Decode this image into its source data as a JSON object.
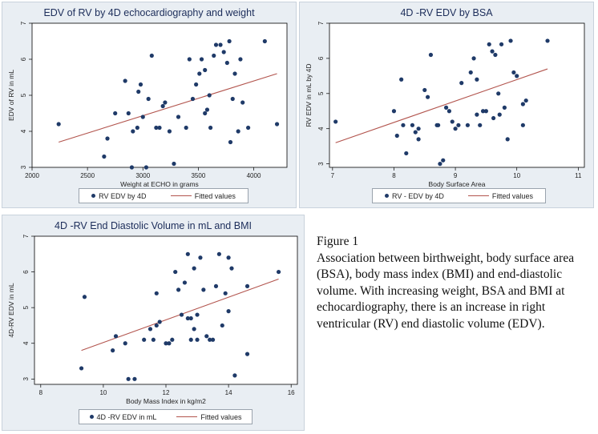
{
  "colors": {
    "marker": "#1f3a68",
    "fit_line": "#b2544d",
    "plot_bg": "#ffffff",
    "panel_bg": "#e9eef3"
  },
  "caption": {
    "title": "Figure 1",
    "text": "Association between birthweight, body surface area (BSA), body mass index (BMI) and end-diastolic volume. With increasing weight, BSA and BMI at echocardiography, there is an increase in right ventricular (RV) end diastolic volume (EDV)."
  },
  "chart_data": [
    {
      "type": "scatter",
      "title": "EDV of RV by 4D echocardiography and weight",
      "xlabel": "Weight at ECHO in grams",
      "ylabel": "EDV of RV in mL",
      "xlim": [
        2000,
        4300
      ],
      "ylim": [
        3,
        7
      ],
      "xticks": [
        "2000",
        "2500",
        "3000",
        "3500",
        "4000"
      ],
      "yticks": [
        "3",
        "4",
        "5",
        "6",
        "7"
      ],
      "legend": [
        "RV EDV by 4D",
        "Fitted values"
      ],
      "grid": false,
      "series": [
        {
          "name": "RV EDV by 4D",
          "x": [
            2240,
            2650,
            2680,
            2750,
            2840,
            2870,
            2900,
            2910,
            2950,
            2960,
            2980,
            3000,
            3030,
            3050,
            3080,
            3120,
            3150,
            3180,
            3200,
            3240,
            3280,
            3320,
            3390,
            3420,
            3450,
            3480,
            3510,
            3530,
            3560,
            3560,
            3580,
            3600,
            3610,
            3640,
            3660,
            3700,
            3730,
            3760,
            3780,
            3790,
            3810,
            3830,
            3860,
            3880,
            3900,
            3950,
            4100,
            4210
          ],
          "y": [
            4.2,
            3.3,
            3.8,
            4.5,
            5.4,
            4.5,
            3.0,
            4.0,
            4.1,
            5.1,
            5.3,
            4.4,
            3.0,
            4.9,
            6.1,
            4.1,
            4.1,
            4.7,
            4.8,
            4.0,
            3.1,
            4.4,
            4.1,
            6.0,
            4.9,
            5.3,
            5.6,
            6.0,
            4.5,
            5.7,
            4.6,
            5.0,
            4.1,
            6.1,
            6.4,
            6.4,
            6.2,
            5.9,
            6.5,
            3.7,
            4.9,
            5.6,
            4.0,
            6.0,
            4.8,
            4.1,
            6.5,
            4.2
          ]
        },
        {
          "name": "Fitted values",
          "x": [
            2240,
            4210
          ],
          "y": [
            3.7,
            5.6
          ]
        }
      ]
    },
    {
      "type": "scatter",
      "title": "4D -RV EDV by BSA",
      "xlabel": "Body Surface Area",
      "ylabel": "RV EDV in mL by 4D",
      "xlim": [
        6.95,
        11.1
      ],
      "ylim": [
        2.9,
        7
      ],
      "xticks": [
        "7",
        "8",
        "9",
        "10",
        "11"
      ],
      "yticks": [
        "3",
        "4",
        "5",
        "6",
        "7"
      ],
      "legend": [
        "RV - EDV by 4D",
        "Fitted values"
      ],
      "grid": false,
      "series": [
        {
          "name": "RV - EDV by 4D",
          "x": [
            7.05,
            8.0,
            8.05,
            8.12,
            8.15,
            8.2,
            8.3,
            8.35,
            8.4,
            8.4,
            8.5,
            8.55,
            8.6,
            8.7,
            8.72,
            8.75,
            8.8,
            8.85,
            8.9,
            8.95,
            9.0,
            9.05,
            9.1,
            9.2,
            9.25,
            9.3,
            9.35,
            9.35,
            9.4,
            9.45,
            9.5,
            9.55,
            9.6,
            9.62,
            9.65,
            9.7,
            9.72,
            9.75,
            9.8,
            9.85,
            9.9,
            9.95,
            10.0,
            10.1,
            10.1,
            10.15,
            10.5
          ],
          "y": [
            4.2,
            4.5,
            3.8,
            5.4,
            4.1,
            3.3,
            4.1,
            3.9,
            3.7,
            4.0,
            5.1,
            4.9,
            6.1,
            4.1,
            4.1,
            3.0,
            3.1,
            4.6,
            4.5,
            4.2,
            4.0,
            4.1,
            5.3,
            4.1,
            5.6,
            6.0,
            5.4,
            4.4,
            4.1,
            4.5,
            4.5,
            6.4,
            6.2,
            4.3,
            6.1,
            5.0,
            4.4,
            6.4,
            4.6,
            3.7,
            6.5,
            5.6,
            5.5,
            4.1,
            4.7,
            4.8,
            6.5
          ]
        },
        {
          "name": "Fitted values",
          "x": [
            7.05,
            10.5
          ],
          "y": [
            3.6,
            5.7
          ]
        }
      ]
    },
    {
      "type": "scatter",
      "title": "4D -RV End Diastolic Volume in mL and BMI",
      "xlabel": "Body Mass Index in kg/m2",
      "ylabel": "4D-RV EDV in mL",
      "xlim": [
        7.8,
        16.2
      ],
      "ylim": [
        2.85,
        7
      ],
      "xticks": [
        "8",
        "10",
        "12",
        "14",
        "16"
      ],
      "yticks": [
        "3",
        "4",
        "5",
        "6",
        "7"
      ],
      "legend": [
        "4D -RV EDV in mL",
        "Fitted values"
      ],
      "grid": false,
      "series": [
        {
          "name": "4D -RV EDV in mL",
          "x": [
            9.3,
            9.4,
            10.3,
            10.4,
            10.7,
            10.8,
            11.0,
            11.3,
            11.5,
            11.6,
            11.7,
            11.7,
            11.8,
            12.0,
            12.1,
            12.2,
            12.3,
            12.4,
            12.5,
            12.6,
            12.7,
            12.7,
            12.8,
            12.8,
            12.9,
            12.9,
            13.0,
            13.0,
            13.1,
            13.2,
            13.3,
            13.4,
            13.5,
            13.6,
            13.7,
            13.8,
            13.9,
            14.0,
            14.0,
            14.1,
            14.2,
            14.6,
            14.6,
            15.6
          ],
          "y": [
            3.3,
            5.3,
            3.8,
            4.2,
            4.0,
            3.0,
            3.0,
            4.1,
            4.4,
            4.1,
            4.5,
            5.4,
            4.6,
            4.0,
            4.0,
            4.1,
            6.0,
            5.5,
            4.8,
            5.7,
            6.5,
            4.7,
            4.1,
            4.7,
            4.4,
            6.1,
            4.1,
            4.8,
            6.4,
            5.5,
            4.2,
            4.1,
            4.1,
            5.6,
            6.5,
            4.5,
            5.4,
            6.4,
            4.9,
            6.1,
            3.1,
            5.6,
            3.7,
            6.0
          ]
        },
        {
          "name": "Fitted values",
          "x": [
            9.3,
            15.6
          ],
          "y": [
            3.8,
            5.8
          ]
        }
      ]
    }
  ]
}
